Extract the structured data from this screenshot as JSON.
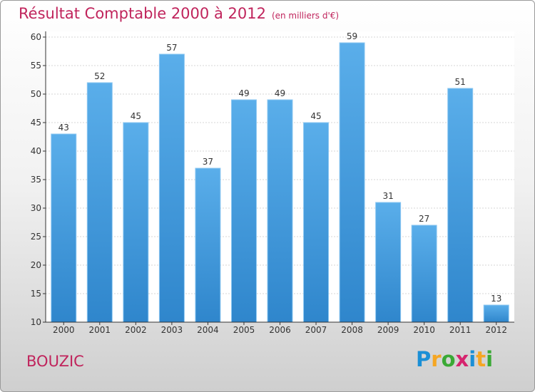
{
  "chart_data": {
    "type": "bar",
    "title": "Résultat Comptable 2000 à 2012",
    "subtitle": "(en milliers d'€)",
    "categories": [
      "2000",
      "2001",
      "2002",
      "2003",
      "2004",
      "2005",
      "2006",
      "2007",
      "2008",
      "2009",
      "2010",
      "2011",
      "2012"
    ],
    "values": [
      43,
      52,
      45,
      57,
      37,
      49,
      49,
      45,
      59,
      31,
      27,
      51,
      13
    ],
    "ylim": [
      10,
      60
    ],
    "yticks": [
      10,
      15,
      20,
      25,
      30,
      35,
      40,
      45,
      50,
      55,
      60
    ],
    "xlabel": "",
    "ylabel": "",
    "grid": true,
    "bar_color": "#2f86cc"
  },
  "commune": "BOUZIC",
  "logo": {
    "letters": [
      "P",
      "r",
      "o",
      "x",
      "i",
      "t",
      "i"
    ],
    "colors": [
      "#1a8fd6",
      "#f5a623",
      "#3aa935",
      "#d6246e",
      "#1a8fd6",
      "#f5a623",
      "#3aa935"
    ]
  }
}
